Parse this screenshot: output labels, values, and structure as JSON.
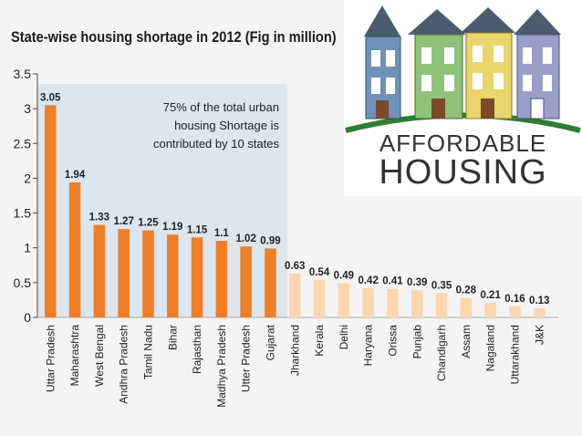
{
  "chart_data": {
    "type": "bar",
    "title": "State-wise housing shortage in 2012 (Fig in million)",
    "categories": [
      "Uttar Pradesh",
      "Maharashtra",
      "West Bengal",
      "Andhra Pradesh",
      "Tamil Nadu",
      "Bihar",
      "Rajasthan",
      "Madhya Pradesh",
      "Utter Pradesh",
      "Gujarat",
      "Jharkhand",
      "Kerala",
      "Delhi",
      "Haryana",
      "Orissa",
      "Punjab",
      "Chandigarh",
      "Assam",
      "Nagaland",
      "Uttarakhand",
      "J&K"
    ],
    "values": [
      3.05,
      1.94,
      1.33,
      1.27,
      1.25,
      1.19,
      1.15,
      1.1,
      1.02,
      0.99,
      0.63,
      0.54,
      0.49,
      0.42,
      0.41,
      0.39,
      0.35,
      0.28,
      0.21,
      0.16,
      0.13
    ],
    "value_labels": [
      "3.05",
      "1.94",
      "1.33",
      "1.27",
      "1.25",
      "1.19",
      "1.15",
      "1.1",
      "1.02",
      "0.99",
      "0.63",
      "0.54",
      "0.49",
      "0.42",
      "0.41",
      "0.39",
      "0.35",
      "0.28",
      "0.21",
      "0.16",
      "0.13"
    ],
    "ylim": [
      0,
      3.5
    ],
    "yticks": [
      "0",
      "0.5",
      "1",
      "1.5",
      "2",
      "2.5",
      "3",
      "3.5"
    ],
    "annotation": [
      "75% of the total urban",
      "housing Shortage is",
      "contributed by 10 states"
    ],
    "highlight_count": 10,
    "colors": {
      "top_bars": "#f07e26",
      "other_bars": "#fbd6ae",
      "highlight_region": "#dbe6ee"
    }
  },
  "logo": {
    "line1": "AFFORDABLE",
    "line2": "HOUSING"
  }
}
